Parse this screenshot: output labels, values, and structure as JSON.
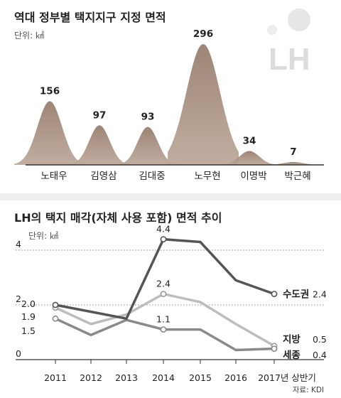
{
  "chart_data": [
    {
      "type": "area",
      "title": "역대 정부별 택지지구 지정 면적",
      "unit": "단위: ㎢",
      "categories": [
        "노태우",
        "김영삼",
        "김대중",
        "노무현",
        "이명박",
        "박근혜"
      ],
      "values": [
        156,
        97,
        93,
        296,
        34,
        7
      ],
      "value_labels": [
        "156",
        "97",
        "93",
        "296",
        "34",
        "7"
      ],
      "colors": {
        "peak": "#8f7565",
        "peak_dark": "#6f5445",
        "baseline": "#333333"
      },
      "logo": "LH"
    },
    {
      "type": "line",
      "title": "LH의 택지 매각(자체 사용 포함) 면적 추이",
      "unit": "단위: ㎢",
      "categories": [
        "2011",
        "2012",
        "2013",
        "2014",
        "2015",
        "2016",
        "2017년 상반기"
      ],
      "ylim": [
        0,
        5
      ],
      "yticks": [
        0,
        2,
        4
      ],
      "ytick_labels": [
        "0",
        "2",
        "4"
      ],
      "series": [
        {
          "name": "수도권",
          "values": [
            2.0,
            1.75,
            1.5,
            4.4,
            4.3,
            2.9,
            2.4
          ],
          "end_label": "2.4",
          "color": "#555555",
          "start_label": "2.0",
          "peak_label": "4.4"
        },
        {
          "name": "지방",
          "values": [
            1.9,
            1.3,
            1.65,
            2.4,
            2.1,
            1.3,
            0.5
          ],
          "end_label": "0.5",
          "color": "#bdbdbd",
          "start_label": "1.9",
          "peak_label": "2.4"
        },
        {
          "name": "세종",
          "values": [
            1.5,
            0.9,
            1.45,
            1.1,
            1.1,
            0.35,
            0.4
          ],
          "end_label": "0.4",
          "color": "#8a8a8a",
          "start_label": "1.5",
          "peak_label": "1.1"
        }
      ],
      "source": "자료: KDI"
    }
  ]
}
